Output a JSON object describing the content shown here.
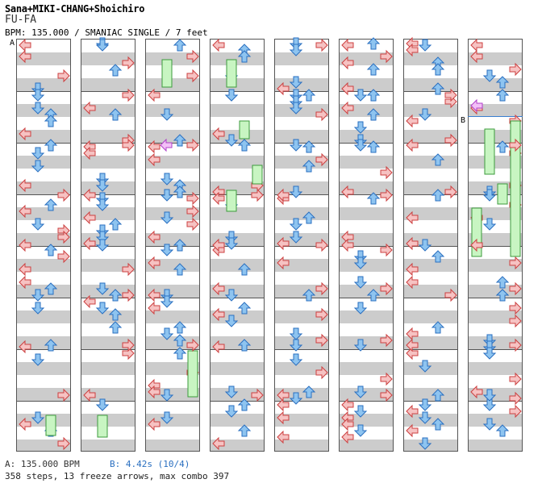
{
  "header": {
    "artist": "Sana+MIKI-CHANG+Shoichiro",
    "title": "FU-FA",
    "meta": "BPM: 135.000 / SMANIAC SINGLE / 7 feet"
  },
  "markers": {
    "a": "A",
    "b": "B"
  },
  "footer": {
    "bpm_a": "A: 135.000 BPM",
    "bpm_b": "B: 4.42s (10/4)",
    "summary": "358 steps, 13 freeze arrows, max combo 397"
  },
  "colors": {
    "red_fill": "#f6c2c2",
    "red_stroke": "#cc4040",
    "blue_fill": "#8ec4f0",
    "blue_stroke": "#2a6fc0",
    "freeze_fill": "#c8f5c2",
    "freeze_stroke": "#3c9a3c",
    "pink_fill": "#f3c0f7",
    "pink_stroke": "#b040c8",
    "stripe": "#cccccc"
  },
  "chart": {
    "measures_per_column": 8,
    "columns": [
      [
        [
          "L",
          0
        ],
        [
          "D",
          0.125
        ],
        [
          "U",
          0.25
        ],
        [
          "R",
          0.375
        ],
        [
          "L",
          0.5
        ],
        [
          "D",
          0.625
        ],
        [
          "U",
          0.75
        ],
        [
          "R",
          0.875
        ]
      ],
      [
        [
          "D",
          1.0
        ],
        [
          "U",
          1.0625
        ],
        [
          "R",
          1.25
        ],
        [
          "L",
          1.375
        ],
        [
          "D",
          1.5
        ],
        [
          "U",
          1.625
        ],
        [
          "R",
          1.75
        ],
        [
          "L",
          1.875
        ]
      ],
      [
        [
          "U",
          2.0
        ],
        [
          "L",
          2.125
        ],
        [
          "R",
          2.25
        ],
        [
          "D",
          2.375
        ],
        [
          "U",
          2.5
        ],
        [
          "L",
          2.625
        ],
        [
          "R",
          2.75
        ],
        [
          "D",
          2.875
        ]
      ],
      [
        [
          "L",
          3.0
        ],
        [
          "D",
          3.125
        ],
        [
          "U",
          3.25
        ],
        [
          "R",
          3.375
        ],
        [
          "L",
          3.5
        ],
        [
          "D",
          3.625
        ],
        [
          "U",
          3.75
        ],
        [
          "R",
          3.875
        ]
      ],
      [
        [
          "R",
          4.0
        ],
        [
          "U",
          4.125
        ],
        [
          "D",
          4.25
        ],
        [
          "L",
          4.375
        ],
        [
          "R",
          4.5
        ],
        [
          "U",
          4.625
        ],
        [
          "D",
          4.75
        ],
        [
          "L",
          4.875
        ]
      ],
      [
        [
          "L",
          5.0
        ],
        [
          "U",
          5.125
        ],
        [
          "D",
          5.25
        ],
        [
          "R",
          5.375
        ],
        [
          "L",
          5.5
        ],
        [
          "U",
          5.625
        ],
        [
          "D",
          5.75
        ],
        [
          "R",
          5.875
        ]
      ],
      [
        [
          "D",
          6.0
        ],
        [
          "R",
          6.125
        ],
        [
          "L",
          6.25
        ],
        [
          "U",
          6.375
        ],
        [
          "D",
          6.5
        ],
        [
          "R",
          6.625
        ],
        [
          "L",
          6.75
        ],
        [
          "U",
          6.875
        ]
      ],
      [
        [
          "L",
          7.0
        ],
        [
          "U",
          7.125
        ],
        [
          "R",
          7.25
        ],
        [
          "D",
          7.375
        ],
        [
          "L",
          7.5
        ],
        [
          "U",
          7.625
        ],
        [
          "R",
          7.75
        ],
        [
          "D",
          7.875
        ]
      ]
    ]
  }
}
